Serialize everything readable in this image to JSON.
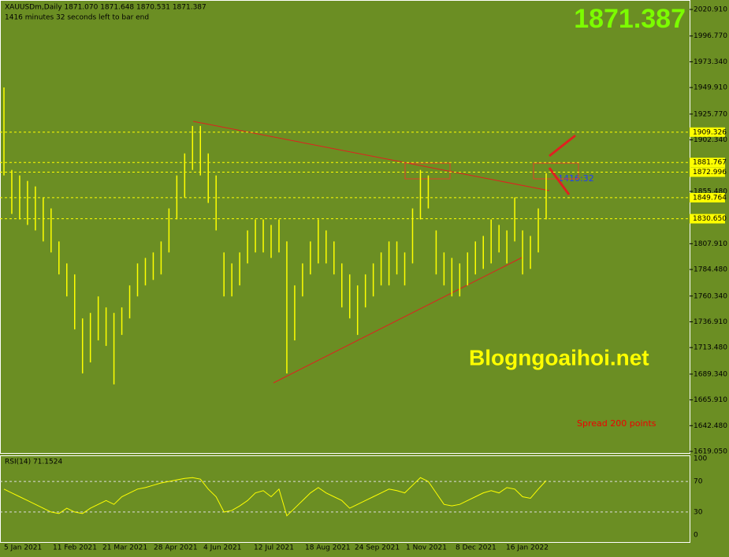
{
  "header": {
    "symbol_line": "XAUUSDm,Daily  1871.070 1871.648 1870.531 1871.387",
    "timer_line": "1416 minutes 32 seconds left to bar end"
  },
  "current_price": "1871.387",
  "watermark": "Blogngoaihoi.net",
  "spread": "Spread  200 points",
  "countdown": "1416:32",
  "price_axis": [
    "2020.910",
    "1996.770",
    "1973.340",
    "1949.910",
    "1925.770",
    "1902.340",
    "1855.480",
    "1807.910",
    "1784.480",
    "1760.340",
    "1736.910",
    "1713.480",
    "1689.340",
    "1665.910",
    "1642.480",
    "1619.050"
  ],
  "levels": [
    "1909.326",
    "1881.767",
    "1872.996",
    "1849.764",
    "1830.650"
  ],
  "bars": {
    "high": [
      1950,
      1875,
      1870,
      1865,
      1860,
      1850,
      1840,
      1810,
      1790,
      1780,
      1740,
      1745,
      1760,
      1750,
      1745,
      1750,
      1770,
      1790,
      1795,
      1800,
      1810,
      1840,
      1870,
      1890,
      1915,
      1915,
      1890,
      1870,
      1800,
      1790,
      1800,
      1820,
      1830,
      1830,
      1825,
      1830,
      1810,
      1770,
      1790,
      1810,
      1830,
      1820,
      1810,
      1790,
      1780,
      1770,
      1780,
      1790,
      1800,
      1810,
      1810,
      1800,
      1840,
      1875,
      1870,
      1820,
      1800,
      1795,
      1790,
      1800,
      1810,
      1815,
      1830,
      1825,
      1820,
      1850,
      1820,
      1815,
      1840,
      1872
    ],
    "low": [
      1870,
      1835,
      1830,
      1825,
      1820,
      1810,
      1800,
      1780,
      1760,
      1730,
      1690,
      1700,
      1720,
      1715,
      1680,
      1725,
      1740,
      1760,
      1770,
      1775,
      1780,
      1800,
      1830,
      1850,
      1875,
      1870,
      1845,
      1820,
      1760,
      1760,
      1770,
      1790,
      1800,
      1800,
      1795,
      1800,
      1690,
      1720,
      1760,
      1780,
      1790,
      1790,
      1780,
      1750,
      1740,
      1725,
      1750,
      1760,
      1770,
      1770,
      1780,
      1770,
      1790,
      1830,
      1840,
      1780,
      1770,
      1760,
      1760,
      1770,
      1780,
      1785,
      1790,
      1800,
      1790,
      1810,
      1780,
      1785,
      1800,
      1830
    ]
  },
  "rsi": {
    "label": "RSI(14) 71.1524",
    "axis": [
      "100",
      "70",
      "30",
      "0"
    ],
    "values": [
      60,
      55,
      50,
      45,
      40,
      35,
      30,
      28,
      35,
      30,
      28,
      35,
      40,
      45,
      40,
      50,
      55,
      60,
      62,
      65,
      68,
      70,
      72,
      74,
      75,
      73,
      60,
      50,
      30,
      32,
      38,
      45,
      55,
      58,
      50,
      60,
      25,
      35,
      45,
      55,
      62,
      55,
      50,
      45,
      35,
      40,
      45,
      50,
      55,
      60,
      58,
      55,
      65,
      75,
      70,
      55,
      40,
      38,
      40,
      45,
      50,
      55,
      58,
      55,
      62,
      60,
      50,
      48,
      60,
      71.1524
    ]
  },
  "dates": [
    "5 Jan 2021",
    "11 Feb 2021",
    "21 Mar 2021",
    "28 Apr 2021",
    "4 Jun 2021",
    "12 Jul 2021",
    "18 Aug 2021",
    "24 Sep 2021",
    "1 Nov 2021",
    "8 Dec 2021",
    "16 Jan 2022"
  ]
}
